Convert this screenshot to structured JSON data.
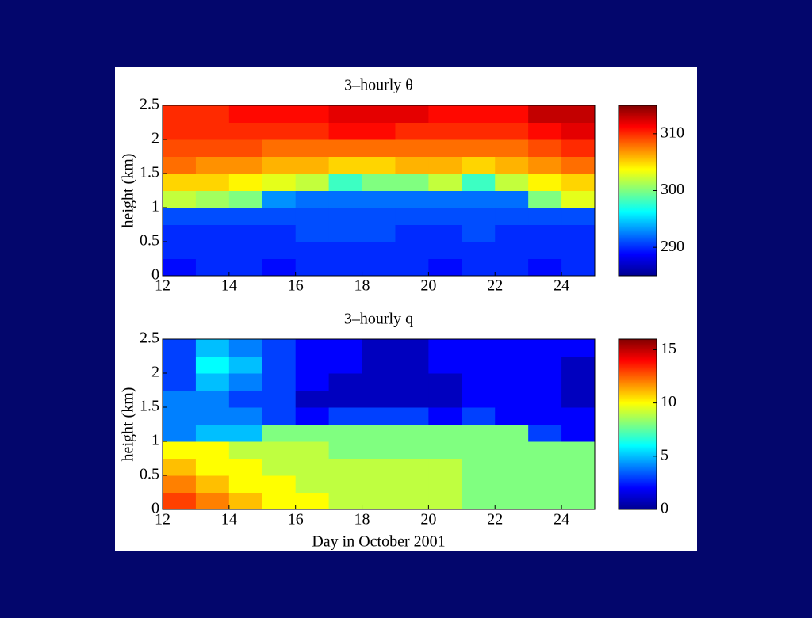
{
  "chart_data": [
    {
      "type": "heatmap",
      "title": "3–hourly θ",
      "ylabel": "height (km)",
      "colormap": "jet",
      "x": [
        12,
        13,
        14,
        15,
        16,
        17,
        18,
        19,
        20,
        21,
        22,
        23,
        24,
        25
      ],
      "y": [
        0,
        0.25,
        0.5,
        0.75,
        1,
        1.25,
        1.5,
        1.75,
        2,
        2.25,
        2.5
      ],
      "values": [
        [
          289,
          290,
          290,
          289,
          290,
          290,
          290,
          290,
          289,
          290,
          290,
          289,
          290
        ],
        [
          290,
          290,
          290,
          290,
          290,
          290,
          290,
          290,
          290,
          290,
          290,
          290,
          290
        ],
        [
          290,
          290,
          290,
          290,
          291,
          291,
          291,
          290,
          290,
          291,
          290,
          290,
          290
        ],
        [
          291,
          291,
          291,
          291,
          291,
          291,
          291,
          291,
          291,
          291,
          291,
          291,
          291
        ],
        [
          302,
          301,
          300,
          293,
          292,
          292,
          292,
          292,
          292,
          292,
          292,
          300,
          303
        ],
        [
          305,
          305,
          304,
          303,
          302,
          298,
          300,
          300,
          302,
          298,
          302,
          304,
          305
        ],
        [
          308,
          307,
          307,
          306,
          306,
          305,
          305,
          306,
          306,
          305,
          306,
          307,
          308
        ],
        [
          309,
          309,
          309,
          308,
          308,
          308,
          308,
          308,
          308,
          308,
          308,
          309,
          310
        ],
        [
          310,
          310,
          310,
          310,
          310,
          311,
          311,
          310,
          310,
          310,
          310,
          311,
          312
        ],
        [
          310,
          310,
          311,
          311,
          311,
          312,
          312,
          312,
          311,
          311,
          311,
          313,
          313
        ]
      ],
      "xlim": [
        12,
        25
      ],
      "xticks": [
        12,
        14,
        16,
        18,
        20,
        22,
        24
      ],
      "ylim": [
        0,
        2.5
      ],
      "yticks": [
        0,
        0.5,
        1,
        1.5,
        2,
        2.5
      ],
      "clim": [
        285,
        315
      ],
      "cticks": [
        290,
        300,
        310
      ]
    },
    {
      "type": "heatmap",
      "title": "3–hourly q",
      "ylabel": "height (km)",
      "xlabel": "Day in October 2001",
      "colormap": "jet",
      "x": [
        12,
        13,
        14,
        15,
        16,
        17,
        18,
        19,
        20,
        21,
        22,
        23,
        24,
        25
      ],
      "y": [
        0,
        0.25,
        0.5,
        0.75,
        1,
        1.25,
        1.5,
        1.75,
        2,
        2.25,
        2.5
      ],
      "values": [
        [
          13,
          12,
          11,
          10,
          10,
          9,
          9,
          9,
          9,
          8,
          8,
          8,
          8
        ],
        [
          12,
          11,
          10,
          10,
          9,
          9,
          9,
          9,
          9,
          8,
          8,
          8,
          8
        ],
        [
          11,
          10,
          10,
          9,
          9,
          9,
          9,
          9,
          9,
          8,
          8,
          8,
          8
        ],
        [
          10,
          10,
          9,
          9,
          9,
          8,
          8,
          8,
          8,
          8,
          8,
          8,
          8
        ],
        [
          4,
          5,
          5,
          8,
          8,
          8,
          8,
          8,
          8,
          8,
          8,
          3,
          2
        ],
        [
          4,
          4,
          4,
          3,
          2,
          3,
          3,
          3,
          2,
          3,
          2,
          2,
          2
        ],
        [
          4,
          4,
          3,
          3,
          1,
          1,
          1,
          1,
          1,
          2,
          2,
          2,
          1
        ],
        [
          3,
          5,
          4,
          3,
          2,
          1,
          1,
          1,
          1,
          2,
          2,
          2,
          1
        ],
        [
          3,
          6,
          5,
          3,
          2,
          2,
          1,
          1,
          2,
          2,
          2,
          2,
          1
        ],
        [
          3,
          5,
          4,
          3,
          2,
          2,
          1,
          1,
          2,
          2,
          2,
          2,
          2
        ]
      ],
      "xlim": [
        12,
        25
      ],
      "xticks": [
        12,
        14,
        16,
        18,
        20,
        22,
        24
      ],
      "ylim": [
        0,
        2.5
      ],
      "yticks": [
        0,
        0.5,
        1,
        1.5,
        2,
        2.5
      ],
      "clim": [
        0,
        16
      ],
      "cticks": [
        0,
        5,
        10,
        15
      ]
    }
  ]
}
